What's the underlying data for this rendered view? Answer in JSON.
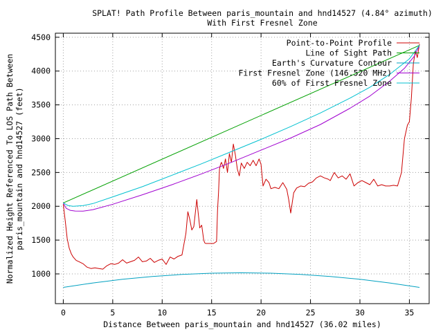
{
  "chart_data": {
    "type": "line",
    "title": "SPLAT! Path Profile Between paris_mountain and hnd14527 (4.84° azimuth)",
    "subtitle": "With First Fresnel Zone",
    "xlabel": "Distance Between paris_mountain and hnd14527 (36.02 miles)",
    "ylabel": "Normalized Height Referenced To LOS Path Between",
    "ylabel2": "paris_mountain and hnd14527 (feet)",
    "xlim": [
      -0.8,
      37.0
    ],
    "ylim": [
      560,
      4560
    ],
    "x_ticks": [
      0,
      5,
      10,
      15,
      20,
      25,
      30,
      35
    ],
    "y_ticks": [
      1000,
      1500,
      2000,
      2500,
      3000,
      3500,
      4000,
      4500
    ],
    "grid": true,
    "legend_position": "top-right",
    "series": [
      {
        "name": "Point-to-Point Profile",
        "color": "#cc0000",
        "x": [
          0,
          0.2,
          0.4,
          0.6,
          0.8,
          1.0,
          1.3,
          1.6,
          2.0,
          2.4,
          2.8,
          3.2,
          3.6,
          4.0,
          4.4,
          4.8,
          5.2,
          5.6,
          6.0,
          6.4,
          6.8,
          7.2,
          7.6,
          8.0,
          8.4,
          8.8,
          9.2,
          9.6,
          10.0,
          10.4,
          10.8,
          11.2,
          11.6,
          12.0,
          12.4,
          12.6,
          12.8,
          13.0,
          13.2,
          13.5,
          13.8,
          14.0,
          14.2,
          14.3,
          14.4,
          14.8,
          15.2,
          15.5,
          15.6,
          15.7,
          15.8,
          15.9,
          16.0,
          16.2,
          16.4,
          16.6,
          16.8,
          17.0,
          17.2,
          17.4,
          17.6,
          17.8,
          18.0,
          18.3,
          18.6,
          18.9,
          19.2,
          19.5,
          19.8,
          20.0,
          20.2,
          20.5,
          20.8,
          21.0,
          21.4,
          21.8,
          22.2,
          22.6,
          22.8,
          23.0,
          23.3,
          23.6,
          24.0,
          24.4,
          24.8,
          25.2,
          25.6,
          26.0,
          26.4,
          26.8,
          27.0,
          27.4,
          27.8,
          28.2,
          28.6,
          29.0,
          29.4,
          29.8,
          30.2,
          30.6,
          31.0,
          31.4,
          31.8,
          32.2,
          32.6,
          33.0,
          33.4,
          33.8,
          34.2,
          34.5,
          34.8,
          35.0,
          35.2,
          35.4,
          35.6,
          35.8,
          36.02
        ],
        "y": [
          2030,
          1780,
          1520,
          1380,
          1300,
          1250,
          1200,
          1180,
          1150,
          1100,
          1080,
          1090,
          1080,
          1070,
          1120,
          1150,
          1140,
          1160,
          1210,
          1160,
          1180,
          1200,
          1250,
          1180,
          1190,
          1230,
          1170,
          1200,
          1220,
          1140,
          1250,
          1220,
          1260,
          1280,
          1600,
          1920,
          1800,
          1650,
          1700,
          2100,
          1680,
          1720,
          1500,
          1460,
          1450,
          1450,
          1450,
          1480,
          1950,
          2200,
          2550,
          2620,
          2650,
          2560,
          2700,
          2500,
          2780,
          2650,
          2920,
          2760,
          2550,
          2450,
          2640,
          2560,
          2650,
          2600,
          2680,
          2600,
          2700,
          2620,
          2300,
          2400,
          2350,
          2260,
          2280,
          2260,
          2350,
          2250,
          2100,
          1900,
          2200,
          2270,
          2300,
          2290,
          2340,
          2360,
          2420,
          2450,
          2420,
          2400,
          2380,
          2500,
          2420,
          2450,
          2400,
          2480,
          2300,
          2350,
          2380,
          2350,
          2320,
          2400,
          2300,
          2320,
          2300,
          2300,
          2310,
          2300,
          2500,
          3000,
          3200,
          3250,
          3600,
          4100,
          4300,
          4200,
          4400
        ]
      },
      {
        "name": "Line of Sight Path",
        "color": "#00a000",
        "x": [
          0,
          36.02
        ],
        "y": [
          2050,
          4380
        ]
      },
      {
        "name": "Earth's Curvature Contour",
        "color": "#00a0c0",
        "x": [
          0,
          3,
          6,
          9,
          12,
          15,
          18,
          21,
          24,
          27,
          30,
          33,
          36.02
        ],
        "y": [
          800,
          866,
          920,
          962,
          992,
          1010,
          1016,
          1010,
          992,
          962,
          920,
          866,
          800
        ]
      },
      {
        "name": "First Fresnel Zone (146.520 MHz)",
        "color": "#a000d0",
        "x": [
          0,
          0.3,
          0.7,
          1.2,
          2.0,
          3.0,
          5.0,
          8.0,
          11.0,
          14.0,
          17.0,
          20.0,
          23.0,
          26.0,
          29.0,
          31.0,
          33.0,
          34.5,
          35.5,
          36.02
        ],
        "y": [
          2050,
          1970,
          1940,
          1930,
          1928,
          1950,
          2030,
          2170,
          2320,
          2480,
          2650,
          2830,
          3010,
          3210,
          3450,
          3630,
          3850,
          4040,
          4220,
          4380
        ]
      },
      {
        "name": "60% of First Fresnel Zone",
        "color": "#00c0d0",
        "x": [
          0,
          0.5,
          1.0,
          2.0,
          3.0,
          5.0,
          8.0,
          11.0,
          14.0,
          17.0,
          20.0,
          23.0,
          26.0,
          29.0,
          31.0,
          33.0,
          35.0,
          36.02
        ],
        "y": [
          2050,
          2010,
          2000,
          2010,
          2040,
          2140,
          2290,
          2460,
          2630,
          2810,
          2990,
          3180,
          3380,
          3600,
          3760,
          3950,
          4180,
          4380
        ]
      }
    ]
  }
}
